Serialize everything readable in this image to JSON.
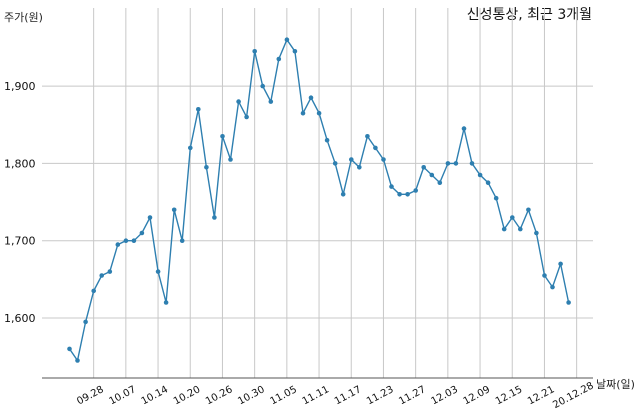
{
  "chart_data": {
    "type": "line",
    "title": "신성통상, 최근 3개월",
    "ylabel": "주가(원)",
    "xlabel": "날짜(일)",
    "ylim": [
      1520,
      1965
    ],
    "yticks": [
      1600,
      1700,
      1800,
      1900
    ],
    "ytick_labels": [
      "1,600",
      "1,700",
      "1,800",
      "1,900"
    ],
    "xtick_labels": [
      "09.28",
      "10.07",
      "10.14",
      "10.20",
      "10.26",
      "10.30",
      "11.05",
      "11.11",
      "11.17",
      "11.23",
      "11.27",
      "12.03",
      "12.09",
      "12.15",
      "12.21",
      "20.12.28"
    ],
    "xtick_index": [
      3,
      7,
      11,
      15,
      19,
      23,
      27,
      31,
      35,
      39,
      43,
      47,
      51,
      55,
      59,
      63
    ],
    "grid": true,
    "colors": {
      "line": "#2e7fb0",
      "grid": "#c8c8c8"
    },
    "series": [
      {
        "values": [
          1560,
          1545,
          1595,
          1635,
          1655,
          1660,
          1695,
          1700,
          1700,
          1710,
          1730,
          1660,
          1620,
          1740,
          1700,
          1820,
          1870,
          1795,
          1730,
          1835,
          1805,
          1880,
          1860,
          1945,
          1900,
          1880,
          1935,
          1960,
          1945,
          1865,
          1885,
          1865,
          1830,
          1800,
          1760,
          1805,
          1795,
          1835,
          1820,
          1805,
          1770,
          1760,
          1760,
          1765,
          1795,
          1785,
          1775,
          1800,
          1800,
          1845,
          1800,
          1785,
          1775,
          1755,
          1715,
          1730,
          1715,
          1740,
          1710,
          1655,
          1640,
          1670,
          1620
        ]
      }
    ]
  }
}
